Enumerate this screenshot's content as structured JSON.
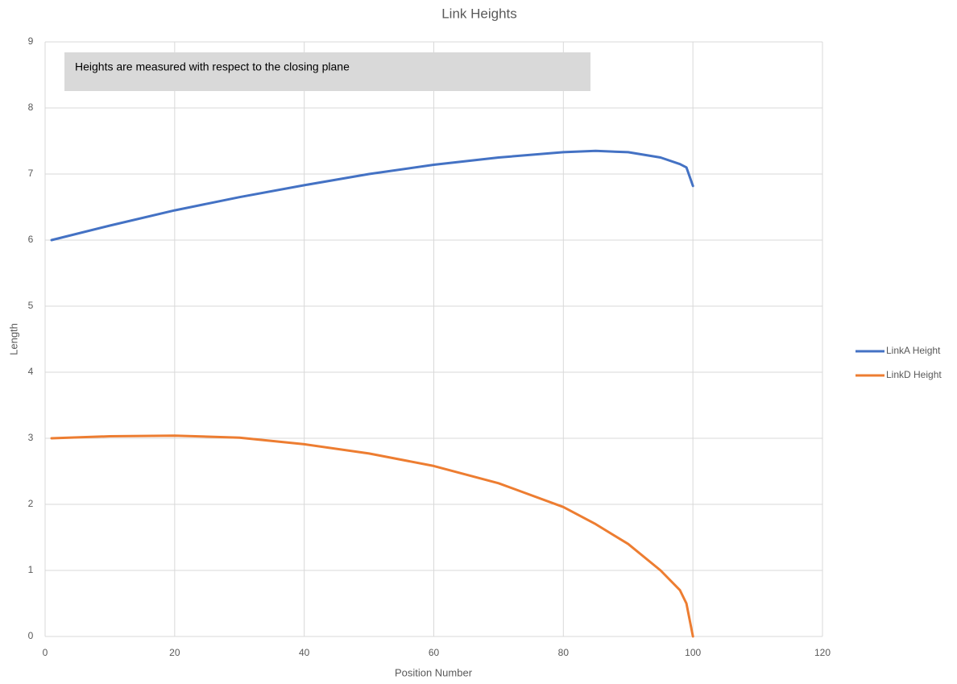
{
  "chart_data": {
    "type": "line",
    "title": "Link Heights",
    "xlabel": "Position Number",
    "ylabel": "Length",
    "annotation": "Heights are measured with respect to the closing plane",
    "x": [
      1,
      10,
      20,
      30,
      40,
      50,
      60,
      70,
      80,
      85,
      90,
      95,
      98,
      99,
      100
    ],
    "series": [
      {
        "name": "LinkA Height",
        "color": "#4472c4",
        "values": [
          6.0,
          6.22,
          6.45,
          6.65,
          6.83,
          7.0,
          7.14,
          7.25,
          7.33,
          7.35,
          7.33,
          7.25,
          7.15,
          7.1,
          6.82
        ]
      },
      {
        "name": "LinkD Height",
        "color": "#ed7d31",
        "values": [
          3.0,
          3.03,
          3.04,
          3.01,
          2.91,
          2.77,
          2.58,
          2.32,
          1.96,
          1.7,
          1.4,
          1.0,
          0.7,
          0.5,
          0.0
        ]
      }
    ],
    "xlim": [
      0,
      120
    ],
    "xticks": [
      0,
      20,
      40,
      60,
      80,
      100,
      120
    ],
    "ylim": [
      0,
      9
    ],
    "yticks": [
      0,
      1,
      2,
      3,
      4,
      5,
      6,
      7,
      8,
      9
    ],
    "grid": true,
    "legend": "right"
  }
}
